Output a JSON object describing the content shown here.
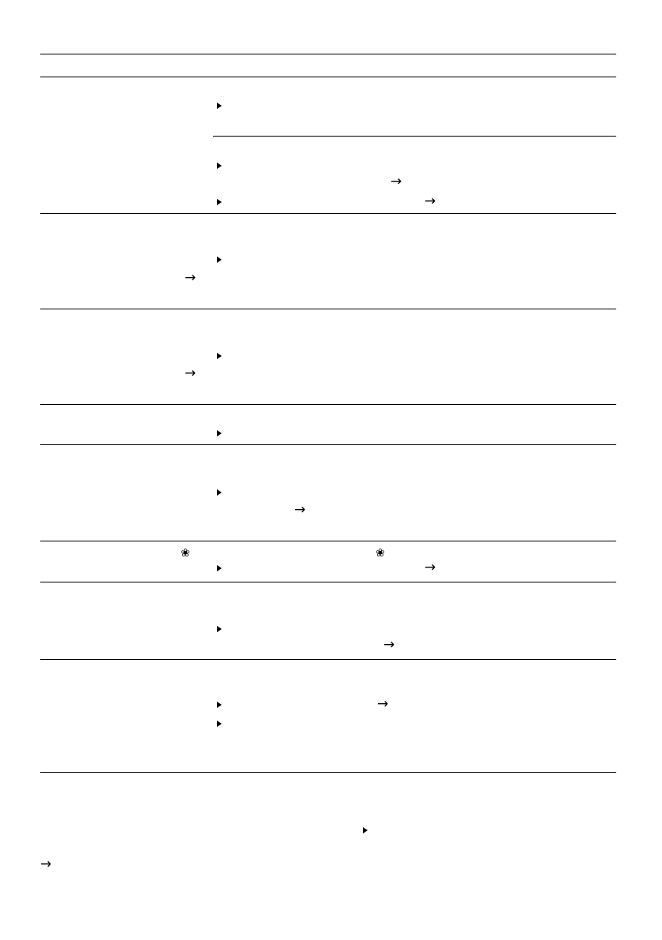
{
  "icons": {
    "bullet": "triangle-right",
    "arrow": "arrow-right",
    "fan": "fan-flower"
  },
  "glyphs": {
    "arrow": "→",
    "fan": "❀"
  },
  "colors": {
    "ink": "#000000",
    "background": "#ffffff"
  }
}
